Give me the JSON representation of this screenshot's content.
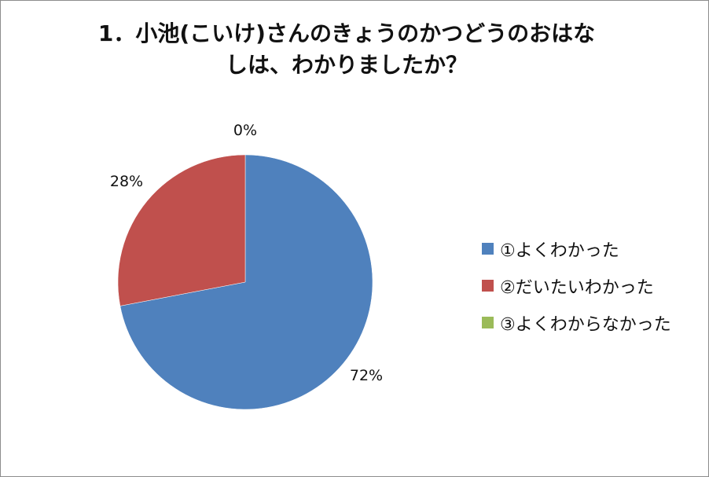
{
  "chart_data": {
    "type": "pie",
    "title": "1．小池(こいけ)さんのきょうのかつどうのおはなしは、わかりましたか？",
    "title_lines": [
      "1．小池(こいけ)さんのきょうのかつどうのおはな",
      "しは、わかりましたか？"
    ],
    "categories": [
      "①よくわかった",
      "②だいたいわかった",
      "③よくわからなかった"
    ],
    "values": [
      72,
      28,
      0
    ],
    "data_labels": [
      "72%",
      "28%",
      "0%"
    ],
    "colors": [
      "#4f81bd",
      "#c0504d",
      "#9bbb59"
    ],
    "legend_position": "right"
  }
}
